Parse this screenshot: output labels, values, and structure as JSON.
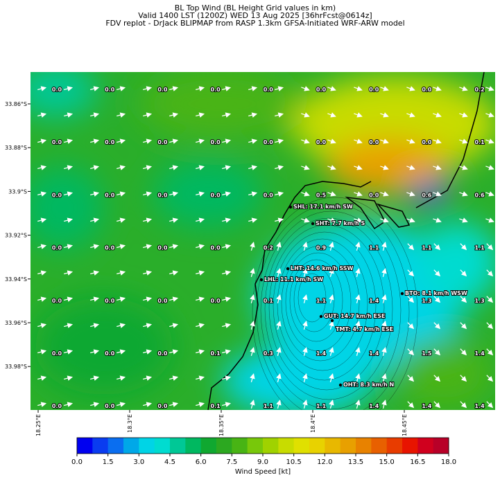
{
  "header": {
    "title": [
      "BL Top Wind (BL Height Grid values in km)",
      "Valid 1400 LST (1200Z) WED 13 Aug 2025 [36hrFcst@0614z]",
      "FDV replot - DrJack BLIPMAP from RASP 1.3km GFSA-Initiated WRF-ARW model"
    ]
  },
  "map": {
    "lat_labels": [
      "33.86°S",
      "33.88°S",
      "33.9°S",
      "33.92°S",
      "33.94°S",
      "33.96°S",
      "33.98°S"
    ],
    "lon_labels": [
      "18.25°E",
      "18.3°E",
      "18.35°E",
      "18.4°E",
      "18.45°E"
    ],
    "grid_values": [
      [
        "0.0",
        "0.0",
        "0.0",
        "0.0",
        "0.0",
        "0.0",
        "0.0",
        "0.0",
        "0.2"
      ],
      [
        "0.0",
        "0.0",
        "0.0",
        "0.0",
        "0.0",
        "0.0",
        "0.0",
        "0.0",
        "0.1"
      ],
      [
        "0.0",
        "0.0",
        "0.0",
        "0.0",
        "0.0",
        "0.5",
        "0.0",
        "0.6",
        "0.6"
      ],
      [
        "0.0",
        "0.0",
        "0.0",
        "0.0",
        "0.2",
        "0.9",
        "1.1",
        "1.1",
        "1.1"
      ],
      [
        "0.0",
        "0.0",
        "0.0",
        "0.0",
        "0.1",
        "1.1",
        "1.4",
        "1.3",
        "1.3"
      ],
      [
        "0.0",
        "0.0",
        "0.0",
        "0.1",
        "0.3",
        "1.4",
        "1.4",
        "1.5",
        "1.4"
      ],
      [
        "0.0",
        "0.0",
        "0.0",
        "0.1",
        "1.1",
        "1.1",
        "1.4",
        "1.4",
        "1.4"
      ]
    ],
    "stations": [
      "SHL: 17.1 km/h SW",
      "SHT: 7.7 km/h S",
      "LHT: 14.6 km/h SSW",
      "LHL: 11.1 km/h SW",
      "BTO: 8.1 km/h WSW",
      "GUT: 14.7 km/h ESE",
      "TMT: 4.7 km/h ESE",
      "OHT: 8.3 km/h N"
    ]
  },
  "colorbar": {
    "ticks": [
      "0.0",
      "1.5",
      "3.0",
      "4.5",
      "6.0",
      "7.5",
      "9.0",
      "10.5",
      "12.0",
      "13.5",
      "15.0",
      "16.5",
      "18.0"
    ],
    "label": "Wind Speed [kt]",
    "colors": [
      "#0000f0",
      "#0a3cf0",
      "#0a6ef0",
      "#00a8e8",
      "#00d4e6",
      "#00dcd0",
      "#00c896",
      "#00b860",
      "#10a830",
      "#2ca820",
      "#48b414",
      "#78c80a",
      "#a0d200",
      "#c8dc00",
      "#e0e000",
      "#e8d200",
      "#e8b800",
      "#e8a000",
      "#e88200",
      "#e86000",
      "#e83c00",
      "#e81400",
      "#d0001e",
      "#b80028"
    ]
  }
}
